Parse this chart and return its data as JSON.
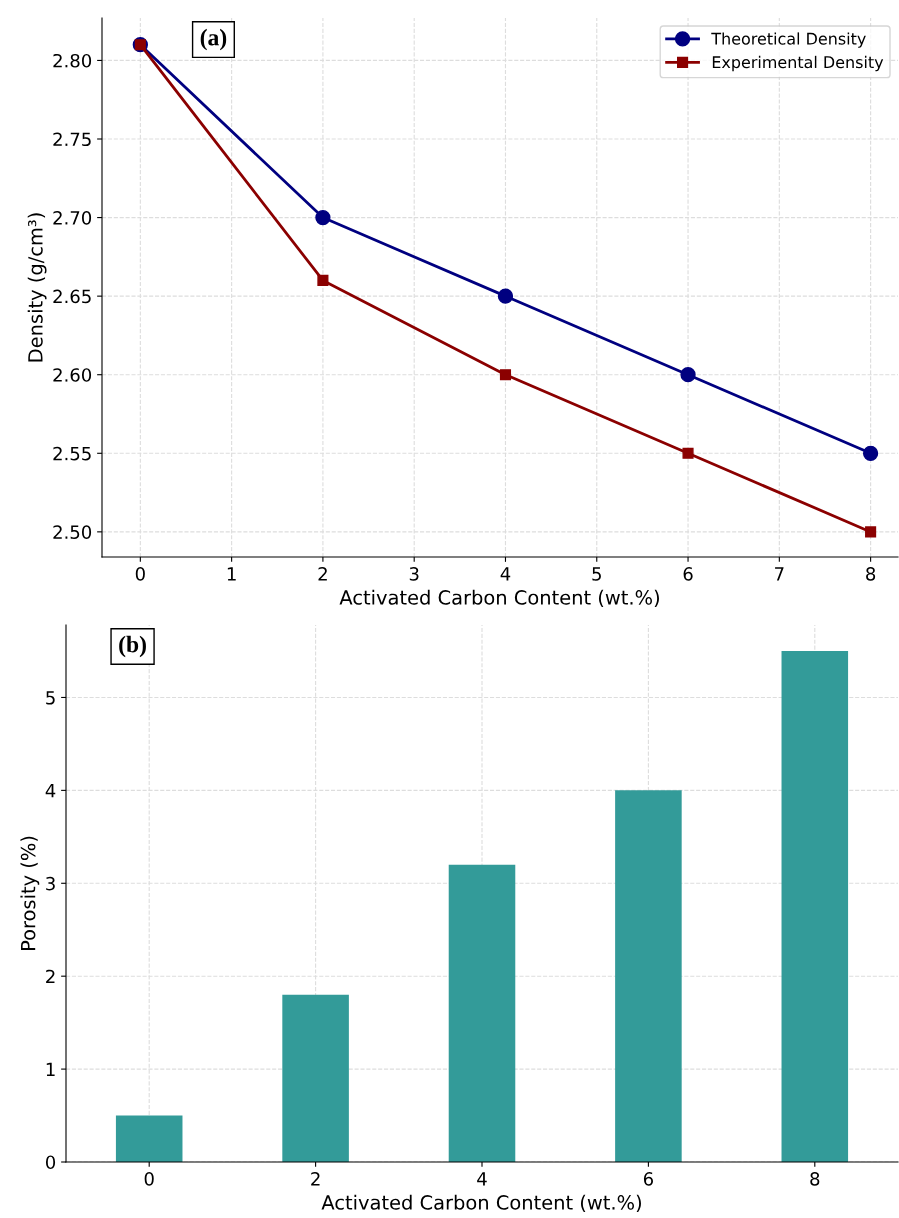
{
  "chart_data": [
    {
      "type": "line",
      "x": [
        0,
        2,
        4,
        6,
        8
      ],
      "xlabel": "Activated Carbon Content (wt.%)",
      "ylabel": "Density (g/cm³)",
      "series": [
        {
          "name": "Theoretical Density",
          "color": "#000080",
          "marker": "circle",
          "values": [
            2.81,
            2.7,
            2.65,
            2.6,
            2.55
          ]
        },
        {
          "name": "Experimental Density",
          "color": "#8b0000",
          "marker": "square",
          "values": [
            2.81,
            2.66,
            2.6,
            2.55,
            2.5
          ]
        }
      ],
      "xlim": [
        -0.42,
        8.3
      ],
      "xticks": [
        0,
        1,
        2,
        3,
        4,
        5,
        6,
        7,
        8
      ],
      "ylim": [
        2.484,
        2.827
      ],
      "yticks": [
        {
          "value": 2.5,
          "label": "2.50"
        },
        2.55,
        {
          "value": 2.6,
          "label": "2.60"
        },
        2.65,
        {
          "value": 2.7,
          "label": "2.70"
        },
        2.75,
        {
          "value": 2.8,
          "label": "2.80"
        }
      ],
      "grid": true,
      "legend": "top right",
      "line_style": "solid",
      "annotations": [
        "(a)"
      ]
    },
    {
      "type": "bar",
      "categories": [
        "0",
        "2",
        "4",
        "6",
        "8"
      ],
      "values": [
        0.5,
        1.8,
        3.2,
        4.0,
        5.5
      ],
      "color": "#339b99",
      "xlabel": "Activated Carbon Content (wt.%)",
      "ylabel": "Porosity (%)",
      "ylim": [
        0,
        5.78
      ],
      "yticks": [
        0,
        1,
        2,
        3,
        4,
        5
      ],
      "grid": true,
      "annotations": [
        "(b)"
      ]
    }
  ]
}
